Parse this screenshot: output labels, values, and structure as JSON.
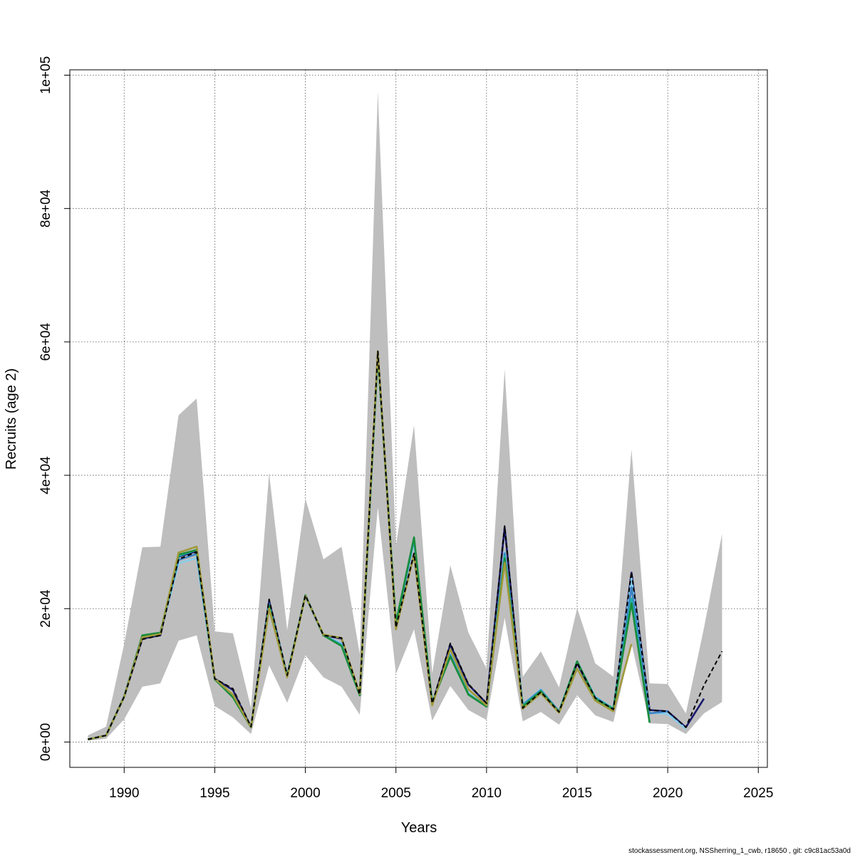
{
  "chart_data": {
    "type": "line",
    "title": "",
    "xlabel": "Years",
    "ylabel": "Recruits (age 2)",
    "xlim": [
      1987,
      2025.5
    ],
    "ylim": [
      -3800,
      100800
    ],
    "x_ticks": [
      1990,
      1995,
      2000,
      2005,
      2010,
      2015,
      2020,
      2025
    ],
    "x_tick_labels": [
      "1990",
      "1995",
      "2000",
      "2005",
      "2010",
      "2015",
      "2020",
      "2025"
    ],
    "y_ticks": [
      0,
      20000,
      40000,
      60000,
      80000,
      100000
    ],
    "y_tick_labels": [
      "0e+00",
      "2e+04",
      "4e+04",
      "6e+04",
      "8e+04",
      "1e+05"
    ],
    "grid": true,
    "confidence_band": {
      "x": [
        1988,
        1989,
        1990,
        1991,
        1992,
        1993,
        1994,
        1995,
        1996,
        1997,
        1998,
        1999,
        2000,
        2001,
        2002,
        2003,
        2004,
        2005,
        2006,
        2007,
        2008,
        2009,
        2010,
        2011,
        2012,
        2013,
        2014,
        2015,
        2016,
        2017,
        2018,
        2019,
        2020,
        2021,
        2022,
        2023
      ],
      "lower": [
        200,
        500,
        3400,
        8300,
        8800,
        15200,
        16000,
        5400,
        3700,
        1200,
        11500,
        5900,
        13000,
        9700,
        8300,
        4100,
        35200,
        10200,
        16900,
        3200,
        8400,
        4800,
        3300,
        18600,
        3100,
        4500,
        2600,
        7000,
        4000,
        3000,
        14800,
        2800,
        2700,
        1200,
        4300,
        6000
      ],
      "upper": [
        1000,
        2300,
        14700,
        29200,
        29300,
        49000,
        51500,
        16600,
        16300,
        5100,
        40300,
        16800,
        36500,
        27400,
        29300,
        13200,
        97500,
        29400,
        47500,
        10300,
        26500,
        16400,
        11000,
        55900,
        9800,
        13600,
        8200,
        20100,
        11800,
        9800,
        43900,
        8800,
        8700,
        4300,
        17100,
        31200
      ],
      "color": "#bebebe"
    },
    "series": [
      {
        "color": "#1a1a6e",
        "x": [
          1988,
          1989,
          1990,
          1991,
          1992,
          1993,
          1994,
          1995,
          1996,
          1997,
          1998,
          1999,
          2000,
          2001,
          2002,
          2003,
          2004,
          2005,
          2006,
          2007,
          2008,
          2009,
          2010,
          2011,
          2012,
          2013,
          2014,
          2015,
          2016,
          2017,
          2018,
          2019,
          2020,
          2021,
          2022
        ],
        "y": [
          400,
          1000,
          6800,
          15500,
          16000,
          27800,
          28600,
          9500,
          7800,
          2200,
          21200,
          9900,
          22000,
          16000,
          15500,
          7000,
          58500,
          17200,
          28100,
          5700,
          14600,
          8600,
          5800,
          32200,
          5000,
          7500,
          4500,
          11800,
          6500,
          4900,
          25400,
          4800,
          4600,
          2200,
          6500
        ]
      },
      {
        "color": "#87ceeb",
        "x": [
          1988,
          1989,
          1990,
          1991,
          1992,
          1993,
          1994,
          1995,
          1996,
          1997,
          1998,
          1999,
          2000,
          2001,
          2002,
          2003,
          2004,
          2005,
          2006,
          2007,
          2008,
          2009,
          2010,
          2011,
          2012,
          2013,
          2014,
          2015,
          2016,
          2017,
          2018,
          2019,
          2020,
          2021
        ],
        "y": [
          400,
          1000,
          6800,
          15800,
          16300,
          26800,
          27600,
          9500,
          7000,
          2200,
          20600,
          10000,
          21800,
          16000,
          14800,
          7000,
          57800,
          17500,
          30000,
          5900,
          13200,
          7300,
          5400,
          28500,
          5700,
          7900,
          4600,
          12000,
          6800,
          5000,
          24500,
          4400,
          4200,
          2000
        ]
      },
      {
        "color": "#3b82c4",
        "x": [
          1988,
          1989,
          1990,
          1991,
          1992,
          1993,
          1994,
          1995,
          1996,
          1997,
          1998,
          1999,
          2000,
          2001,
          2002,
          2003,
          2004,
          2005,
          2006,
          2007,
          2008,
          2009,
          2010,
          2011,
          2012,
          2013,
          2014,
          2015,
          2016,
          2017,
          2018,
          2019,
          2020
        ],
        "y": [
          400,
          1000,
          6900,
          15900,
          16300,
          27300,
          28200,
          9400,
          6900,
          2200,
          20700,
          10000,
          21900,
          16000,
          14600,
          7000,
          57900,
          17600,
          30300,
          5900,
          13100,
          7200,
          5300,
          28300,
          5600,
          7800,
          4600,
          12100,
          6700,
          5000,
          23200,
          4300,
          4600
        ]
      },
      {
        "color": "#20b2aa",
        "x": [
          1988,
          1989,
          1990,
          1991,
          1992,
          1993,
          1994,
          1995,
          1996,
          1997,
          1998,
          1999,
          2000,
          2001,
          2002,
          2003,
          2004,
          2005,
          2006,
          2007,
          2008,
          2009,
          2010,
          2011,
          2012,
          2013,
          2014,
          2015,
          2016,
          2017,
          2018,
          2019
        ],
        "y": [
          400,
          1000,
          6800,
          15900,
          16300,
          27900,
          28800,
          9400,
          6900,
          2200,
          20500,
          9900,
          22000,
          16000,
          14500,
          7000,
          58000,
          17800,
          30500,
          5900,
          12900,
          7200,
          5300,
          27900,
          5400,
          7700,
          4500,
          12100,
          6600,
          5000,
          21500,
          3000
        ]
      },
      {
        "color": "#1a8c3c",
        "x": [
          1988,
          1989,
          1990,
          1991,
          1992,
          1993,
          1994,
          1995,
          1996,
          1997,
          1998,
          1999,
          2000,
          2001,
          2002,
          2003,
          2004,
          2005,
          2006,
          2007,
          2008,
          2009,
          2010,
          2011,
          2012,
          2013,
          2014,
          2015,
          2016,
          2017,
          2018,
          2019
        ],
        "y": [
          400,
          1000,
          6800,
          16000,
          16400,
          28100,
          28800,
          9400,
          6700,
          2200,
          20300,
          9900,
          22000,
          16000,
          14400,
          7000,
          58200,
          17900,
          30700,
          5900,
          12800,
          7100,
          5300,
          27500,
          5300,
          7600,
          4500,
          12100,
          6500,
          4900,
          20800,
          2900
        ]
      },
      {
        "color": "#a09a3a",
        "x": [
          1988,
          1989,
          1990,
          1991,
          1992,
          1993,
          1994,
          1995,
          1996,
          1997,
          1998,
          1999,
          2000,
          2001,
          2002,
          2003,
          2004,
          2005,
          2006,
          2007,
          2008,
          2009,
          2010,
          2011,
          2012,
          2013,
          2014,
          2015,
          2016,
          2017,
          2018
        ],
        "y": [
          400,
          1000,
          6800,
          15700,
          16200,
          28400,
          29300,
          9500,
          7100,
          2200,
          20000,
          9700,
          21900,
          16100,
          15600,
          7200,
          58600,
          16900,
          28100,
          5500,
          13900,
          7900,
          5500,
          26900,
          5000,
          7300,
          4400,
          11000,
          6200,
          4600,
          14700
        ]
      },
      {
        "color": "#000000",
        "dashed": true,
        "x": [
          1988,
          1989,
          1990,
          1991,
          1992,
          1993,
          1994,
          1995,
          1996,
          1997,
          1998,
          1999,
          2000,
          2001,
          2002,
          2003,
          2004,
          2005,
          2006,
          2007,
          2008,
          2009,
          2010,
          2011,
          2012,
          2013,
          2014,
          2015,
          2016,
          2017,
          2018,
          2019,
          2020,
          2021,
          2022,
          2023
        ],
        "y": [
          400,
          1000,
          6800,
          15400,
          16000,
          27400,
          28500,
          9500,
          8000,
          2300,
          21400,
          10000,
          22000,
          16000,
          15600,
          7100,
          58600,
          17200,
          28300,
          5800,
          14800,
          8700,
          5800,
          32400,
          5100,
          7500,
          4500,
          11900,
          6600,
          4900,
          25500,
          4800,
          4600,
          2200,
          8500,
          13600
        ]
      }
    ]
  },
  "footer": {
    "note": "stockassessment.org, NSSherring_1_cwb, r18650 , git: c9c81ac53a0d"
  }
}
